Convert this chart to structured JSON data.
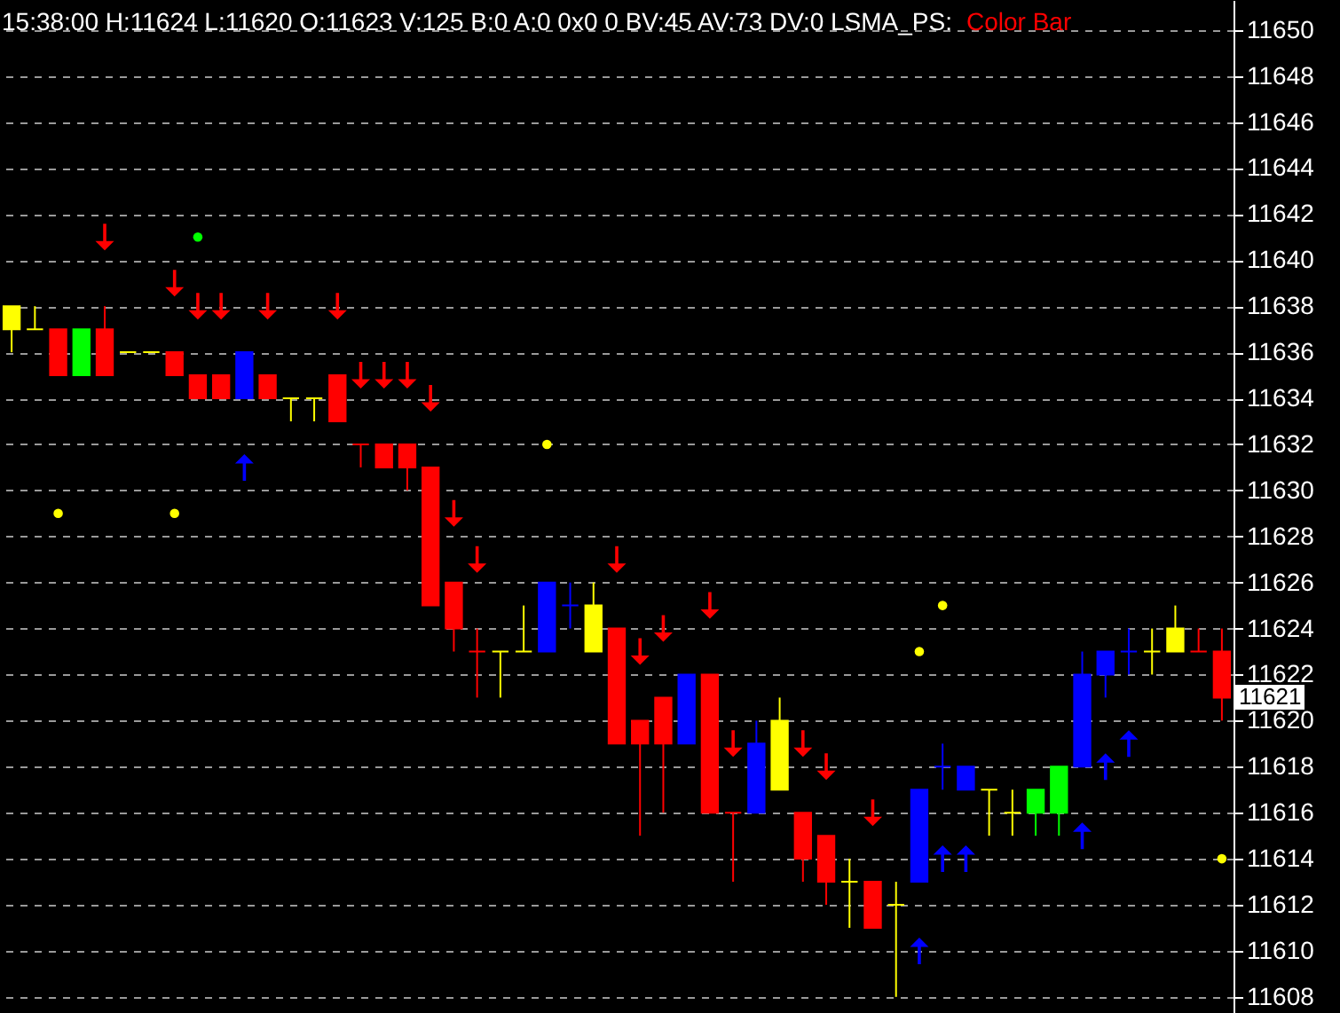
{
  "chart_data": {
    "type": "candlestick",
    "title": "15:38:00 H:11624 L:11620 O:11623 V:125 B:0 A:0 0x0 0 BV:45 AV:73 DV:0 LSMA_PS:",
    "subtitle": "Color Bar",
    "categories": [
      null,
      null,
      null,
      null,
      null,
      null,
      null,
      null,
      null,
      null,
      null,
      null,
      null,
      null,
      null,
      null,
      null,
      null,
      null,
      null,
      null,
      null,
      null,
      null,
      null,
      null,
      null,
      null,
      null,
      null,
      null,
      null,
      null,
      null,
      null,
      null,
      null,
      null,
      null,
      null,
      null,
      null,
      null,
      null,
      null,
      null,
      null,
      null,
      null,
      null,
      null,
      null,
      null
    ],
    "ohlc": [
      [
        11637,
        11638,
        11636,
        11638
      ],
      [
        11637,
        11638,
        11637,
        11637
      ],
      [
        11637,
        11637,
        11635,
        11635
      ],
      [
        11635,
        11637,
        11635,
        11637
      ],
      [
        11637,
        11638,
        11635,
        11635
      ],
      [
        11636,
        11636,
        11636,
        11636
      ],
      [
        11636,
        11636,
        11636,
        11636
      ],
      [
        11636,
        11636,
        11635,
        11635
      ],
      [
        11635,
        11635,
        11634,
        11634
      ],
      [
        11635,
        11635,
        11634,
        11634
      ],
      [
        11634,
        11636,
        11634,
        11636
      ],
      [
        11635,
        11635,
        11634,
        11634
      ],
      [
        11634,
        11634,
        11633,
        11634
      ],
      [
        11634,
        11634,
        11633,
        11634
      ],
      [
        11635,
        11635,
        11633,
        11633
      ],
      [
        11632,
        11632,
        11631,
        11632
      ],
      [
        11632,
        11632,
        11631,
        11631
      ],
      [
        11632,
        11632,
        11630,
        11631
      ],
      [
        11631,
        11631,
        11625,
        11625
      ],
      [
        11626,
        11626,
        11623,
        11624
      ],
      [
        11623,
        11624,
        11621,
        11623
      ],
      [
        11623,
        11623,
        11621,
        11623
      ],
      [
        11623,
        11625,
        11623,
        11623
      ],
      [
        11623,
        11626,
        11623,
        11626
      ],
      [
        11625,
        11626,
        11624,
        11625
      ],
      [
        11623,
        11626,
        11623,
        11625
      ],
      [
        11624,
        11624,
        11619,
        11619
      ],
      [
        11620,
        11620,
        11615,
        11619
      ],
      [
        11621,
        11621,
        11616,
        11619
      ],
      [
        11619,
        11622,
        11619,
        11622
      ],
      [
        11622,
        11622,
        11616,
        11616
      ],
      [
        11616,
        11616,
        11613,
        11616
      ],
      [
        11616,
        11620,
        11616,
        11619
      ],
      [
        11617,
        11621,
        11617,
        11620
      ],
      [
        11616,
        11616,
        11613,
        11614
      ],
      [
        11615,
        11615,
        11612,
        11613
      ],
      [
        11613,
        11614,
        11611,
        11613
      ],
      [
        11613,
        11613,
        11611,
        11611
      ],
      [
        11612,
        11613,
        11608,
        11612
      ],
      [
        11613,
        11617,
        11613,
        11617
      ],
      [
        11618,
        11619,
        11617,
        11618
      ],
      [
        11617,
        11618,
        11617,
        11618
      ],
      [
        11617,
        11617,
        11615,
        11617
      ],
      [
        11616,
        11617,
        11615,
        11616
      ],
      [
        11616,
        11617,
        11615,
        11617
      ],
      [
        11616,
        11618,
        11615,
        11618
      ],
      [
        11618,
        11623,
        11618,
        11622
      ],
      [
        11622,
        11623,
        11621,
        11623
      ],
      [
        11623,
        11624,
        11622,
        11623
      ],
      [
        11623,
        11624,
        11622,
        11623
      ],
      [
        11623,
        11625,
        11623,
        11624
      ],
      [
        11623,
        11624,
        11623,
        11623
      ],
      [
        11623,
        11624,
        11620,
        11621
      ]
    ],
    "colors": [
      "#ffff00",
      "#ffff00",
      "#ff0000",
      "#00ff00",
      "#ff0000",
      "#ffff00",
      "#ffff00",
      "#ff0000",
      "#ff0000",
      "#ff0000",
      "#0000ff",
      "#ff0000",
      "#ffff00",
      "#ffff00",
      "#ff0000",
      "#ff0000",
      "#ff0000",
      "#ff0000",
      "#ff0000",
      "#ff0000",
      "#ff0000",
      "#ffff00",
      "#ffff00",
      "#0000ff",
      "#0000ff",
      "#ffff00",
      "#ff0000",
      "#ff0000",
      "#ff0000",
      "#0000ff",
      "#ff0000",
      "#ff0000",
      "#0000ff",
      "#ffff00",
      "#ff0000",
      "#ff0000",
      "#ffff00",
      "#ff0000",
      "#ffff00",
      "#0000ff",
      "#0000ff",
      "#0000ff",
      "#ffff00",
      "#ffff00",
      "#00ff00",
      "#00ff00",
      "#0000ff",
      "#0000ff",
      "#0000ff",
      "#ffff00",
      "#ffff00",
      "#ff0000",
      "#ff0000"
    ],
    "series": [
      {
        "type": "scatter",
        "marker": "triangle",
        "color": "#ff0000",
        "values": [
          null,
          null,
          null,
          null,
          11641,
          null,
          null,
          11639,
          11638,
          11638,
          null,
          11638,
          null,
          null,
          11638,
          11635,
          11635,
          11635,
          11634,
          11629,
          11627,
          null,
          null,
          null,
          null,
          null,
          11627,
          11623,
          11624,
          null,
          11625,
          11619,
          null,
          null,
          11619,
          11618,
          null,
          11616,
          null,
          null,
          null,
          null,
          null,
          null,
          null,
          null,
          null,
          null,
          null,
          null,
          null,
          null,
          null
        ]
      },
      {
        "type": "scatter",
        "marker": "triangle",
        "color": "#0000ff",
        "values": [
          null,
          null,
          null,
          null,
          null,
          null,
          null,
          null,
          null,
          null,
          11631,
          null,
          null,
          null,
          null,
          null,
          null,
          null,
          null,
          null,
          null,
          null,
          null,
          null,
          null,
          null,
          null,
          null,
          null,
          null,
          null,
          null,
          null,
          null,
          null,
          null,
          null,
          null,
          null,
          11610,
          11614,
          11614,
          null,
          null,
          null,
          null,
          11615,
          11618,
          11619,
          null,
          null,
          null,
          null
        ]
      },
      {
        "type": "scatter",
        "marker": "circle",
        "color": "#ffff00",
        "values": [
          null,
          null,
          11629,
          null,
          null,
          null,
          null,
          11629,
          null,
          null,
          null,
          null,
          null,
          null,
          null,
          null,
          null,
          null,
          null,
          null,
          null,
          null,
          null,
          11632,
          null,
          null,
          null,
          null,
          null,
          null,
          null,
          null,
          null,
          null,
          null,
          null,
          null,
          null,
          null,
          11623,
          11625,
          null,
          null,
          null,
          null,
          null,
          null,
          null,
          null,
          null,
          null,
          null,
          11614
        ]
      },
      {
        "type": "scatter",
        "marker": "circle",
        "color": "#00ff00",
        "values": [
          null,
          null,
          null,
          null,
          null,
          null,
          null,
          null,
          11641,
          null,
          null,
          null,
          null,
          null,
          null,
          null,
          null,
          null,
          null,
          null,
          null,
          null,
          null,
          null,
          null,
          null,
          null,
          null,
          null,
          null,
          null,
          null,
          null,
          null,
          null,
          null,
          null,
          null,
          null,
          null,
          null,
          null,
          null,
          null,
          null,
          null,
          null,
          null,
          null,
          null,
          null,
          null,
          null
        ]
      }
    ],
    "annotations": [
      {
        "text": "11621",
        "y": 11621
      }
    ],
    "ylim": [
      11607.3,
      11651.3
    ],
    "yticks": [
      11608,
      11610,
      11612,
      11614,
      11616,
      11618,
      11620,
      11622,
      11624,
      11626,
      11628,
      11630,
      11632,
      11634,
      11636,
      11638,
      11640,
      11642,
      11644,
      11646,
      11648,
      11650
    ],
    "grid": "y",
    "tick_labels": "y"
  }
}
